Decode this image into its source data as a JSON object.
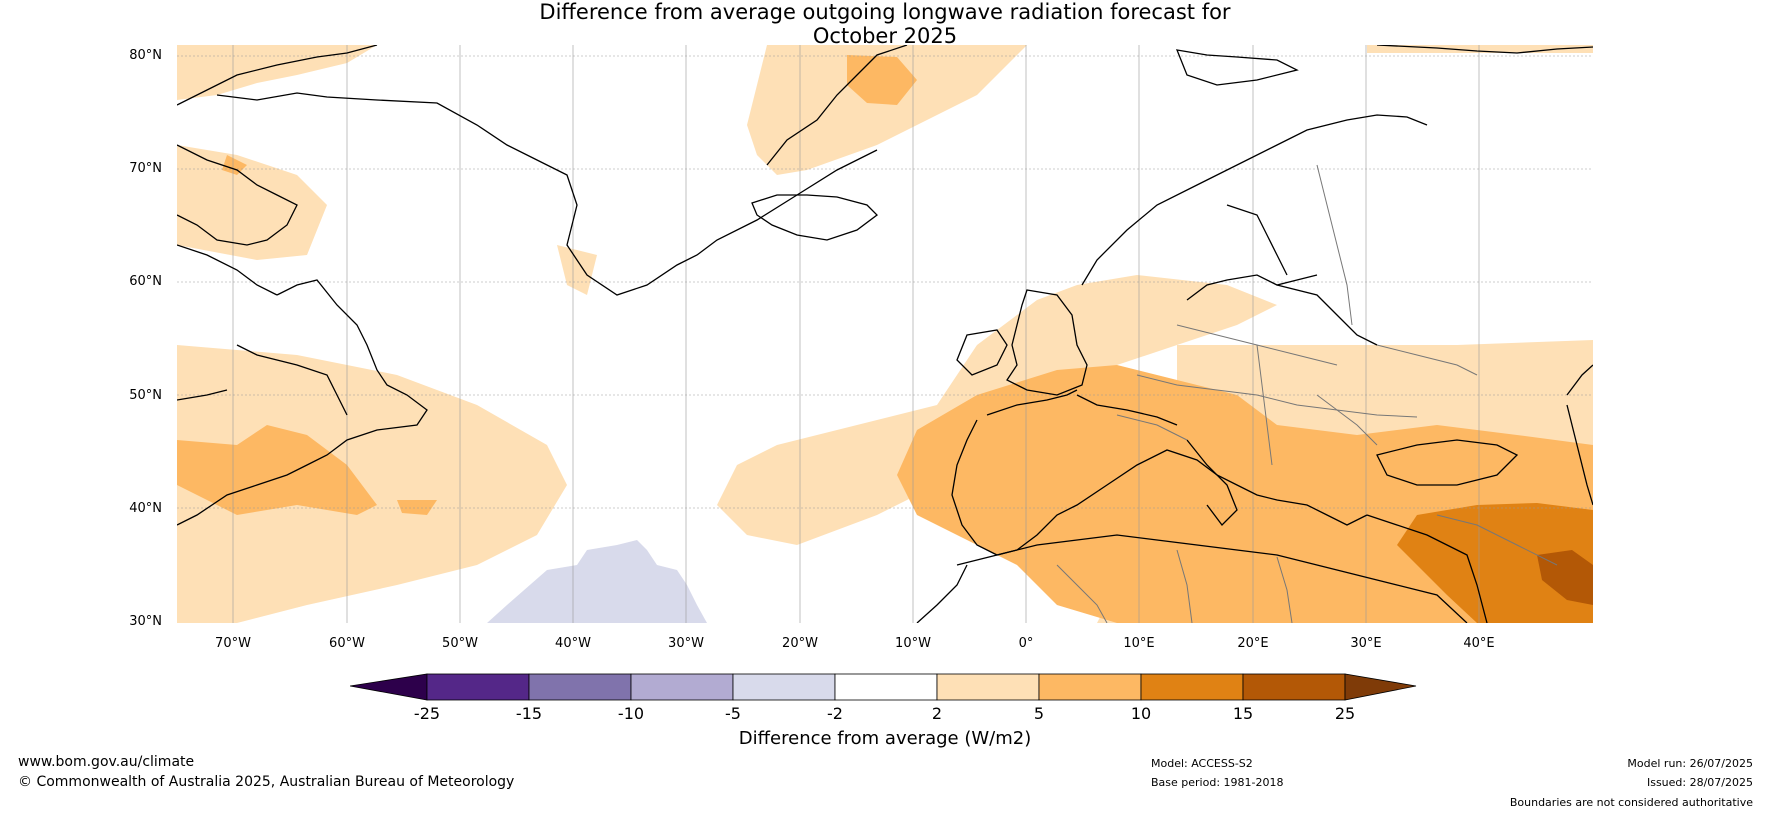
{
  "title_line1": "Difference from average outgoing longwave radiation forecast for",
  "title_line2": "October 2025",
  "lat_labels": [
    "80°N",
    "70°N",
    "60°N",
    "50°N",
    "40°N",
    "30°N"
  ],
  "lon_labels": [
    "70°W",
    "60°W",
    "50°W",
    "40°W",
    "30°W",
    "20°W",
    "10°W",
    "0°",
    "10°E",
    "20°E",
    "30°E",
    "40°E"
  ],
  "colorbar": {
    "ticks": [
      "-25",
      "-15",
      "-10",
      "-5",
      "-2",
      "2",
      "5",
      "10",
      "15",
      "25"
    ],
    "colors": [
      "#2d004b",
      "#542788",
      "#8073ac",
      "#b2abd2",
      "#d8daeb",
      "#ffffff",
      "#fee0b6",
      "#fdb863",
      "#e08214",
      "#b35806",
      "#7f3b08"
    ],
    "label": "Difference from average (W/m2)"
  },
  "footer": {
    "website": "www.bom.gov.au/climate",
    "copyright": "© Commonwealth of Australia 2025, Australian Bureau of Meteorology",
    "model": "Model: ACCESS-S2",
    "base_period": "Base period: 1981-2018",
    "model_run": "Model run: 26/07/2025",
    "issued": "Issued: 28/07/2025",
    "disclaimer": "Boundaries are not considered authoritative"
  }
}
